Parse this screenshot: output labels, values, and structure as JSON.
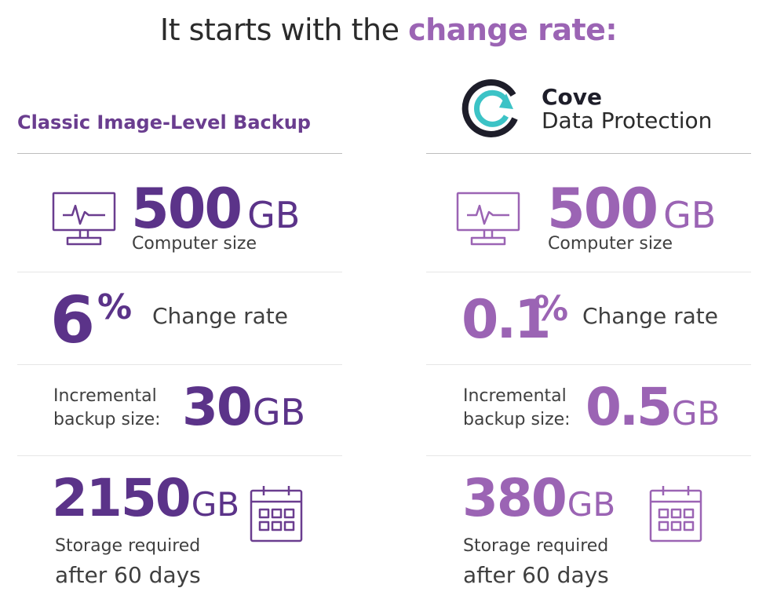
{
  "headline": {
    "prefix": "It starts with the ",
    "accent": "change rate:"
  },
  "left": {
    "title": "Classic Image-Level Backup",
    "computer": {
      "value": "500",
      "unit": "GB",
      "label": "Computer size"
    },
    "change": {
      "value": "6",
      "unit": "%",
      "label": "Change rate"
    },
    "incremental": {
      "label_line1": "Incremental",
      "label_line2": "backup size:",
      "value": "30",
      "unit": "GB"
    },
    "storage": {
      "value": "2150",
      "unit": "GB",
      "line1": "Storage required",
      "line2": "after 60 days"
    }
  },
  "right": {
    "brand": {
      "name": "Cove",
      "subtitle": "Data Protection"
    },
    "computer": {
      "value": "500",
      "unit": "GB",
      "label": "Computer size"
    },
    "change": {
      "value": "0.1",
      "unit": "%",
      "label": "Change rate"
    },
    "incremental": {
      "label_line1": "Incremental",
      "label_line2": "backup size:",
      "value": "0.5",
      "unit": "GB"
    },
    "storage": {
      "value": "380",
      "unit": "GB",
      "line1": "Storage required",
      "line2": "after 60 days"
    }
  },
  "colors": {
    "dark_purple": "#5b3389",
    "light_purple": "#9b64b4",
    "teal": "#3cc3c6"
  }
}
